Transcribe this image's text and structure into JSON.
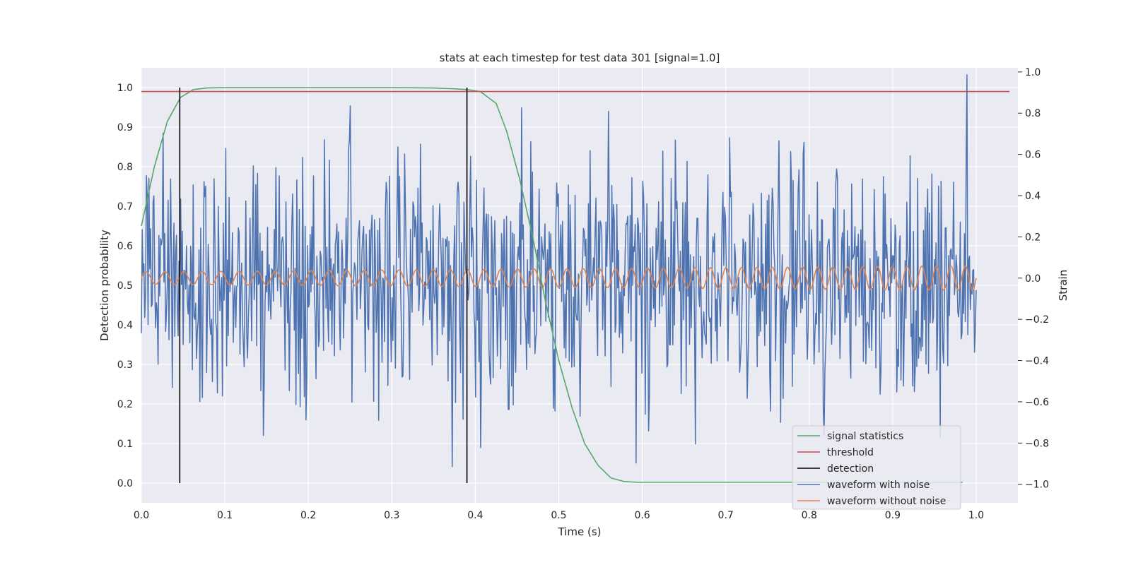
{
  "chart_data": {
    "type": "line",
    "title": "stats at each timestep for test data 301 [signal=1.0]",
    "xlabel": "Time (s)",
    "ylabel": "Detection probability",
    "y2label": "Strain",
    "xlim": [
      0.0,
      1.05
    ],
    "ylim": [
      -0.05,
      1.05
    ],
    "y2lim": [
      -1.09,
      1.02
    ],
    "xticks": [
      "0.0",
      "0.1",
      "0.2",
      "0.3",
      "0.4",
      "0.5",
      "0.6",
      "0.7",
      "0.8",
      "0.9",
      "1.0"
    ],
    "yticks": [
      "0.0",
      "0.1",
      "0.2",
      "0.3",
      "0.4",
      "0.5",
      "0.6",
      "0.7",
      "0.8",
      "0.9",
      "1.0"
    ],
    "y2ticks": [
      "−1.0",
      "−0.8",
      "−0.6",
      "−0.4",
      "−0.2",
      "0.0",
      "0.2",
      "0.4",
      "0.6",
      "0.8",
      "1.0"
    ],
    "grid": true,
    "legend_position": "lower-right",
    "colors": {
      "signal": "#55a868",
      "threshold": "#c44e52",
      "detection": "#000000",
      "noisy": "#4c72b0",
      "clean": "#dd8452",
      "background": "#eaeaf2",
      "grid": "#ffffff"
    },
    "signal_statistics": {
      "name": "signal statistics",
      "x": [
        0.0,
        0.0156,
        0.0312,
        0.0469,
        0.0625,
        0.0781,
        0.1,
        0.2,
        0.3,
        0.35,
        0.375,
        0.39,
        0.406,
        0.425,
        0.4375,
        0.453,
        0.469,
        0.484,
        0.5,
        0.516,
        0.531,
        0.547,
        0.5625,
        0.578,
        0.594,
        0.6,
        0.7,
        0.8,
        0.9,
        0.984
      ],
      "y": [
        0.65,
        0.8,
        0.915,
        0.975,
        0.995,
        0.999,
        1.0,
        1.0,
        1.0,
        0.999,
        0.997,
        0.995,
        0.99,
        0.96,
        0.89,
        0.77,
        0.62,
        0.46,
        0.31,
        0.19,
        0.1,
        0.045,
        0.013,
        0.004,
        0.002,
        0.002,
        0.002,
        0.002,
        0.002,
        0.002
      ]
    },
    "threshold": {
      "name": "threshold",
      "value": 0.99,
      "x": [
        0.0,
        1.04
      ]
    },
    "detection": {
      "name": "detection",
      "x": [
        0.046,
        0.39
      ],
      "y": [
        0.0,
        1.0
      ]
    },
    "waveform_with_noise": {
      "name": "waveform with noise",
      "x_range": [
        0.0,
        1.0
      ],
      "num_points": 1000,
      "strain_std": 0.3,
      "strain_range": [
        -1.0,
        1.0
      ]
    },
    "waveform_without_noise": {
      "name": "waveform without noise",
      "x_range": [
        0.0,
        1.0
      ],
      "amplitude_start": 0.03,
      "amplitude_end": 0.06,
      "frequency_start_hz": 44,
      "frequency_end_hz": 58
    }
  },
  "legend": {
    "items": [
      {
        "label": "signal statistics",
        "color": "#55a868"
      },
      {
        "label": "threshold",
        "color": "#c44e52"
      },
      {
        "label": "detection",
        "color": "#000000"
      },
      {
        "label": "waveform with noise",
        "color": "#4c72b0"
      },
      {
        "label": "waveform without noise",
        "color": "#dd8452"
      }
    ]
  }
}
